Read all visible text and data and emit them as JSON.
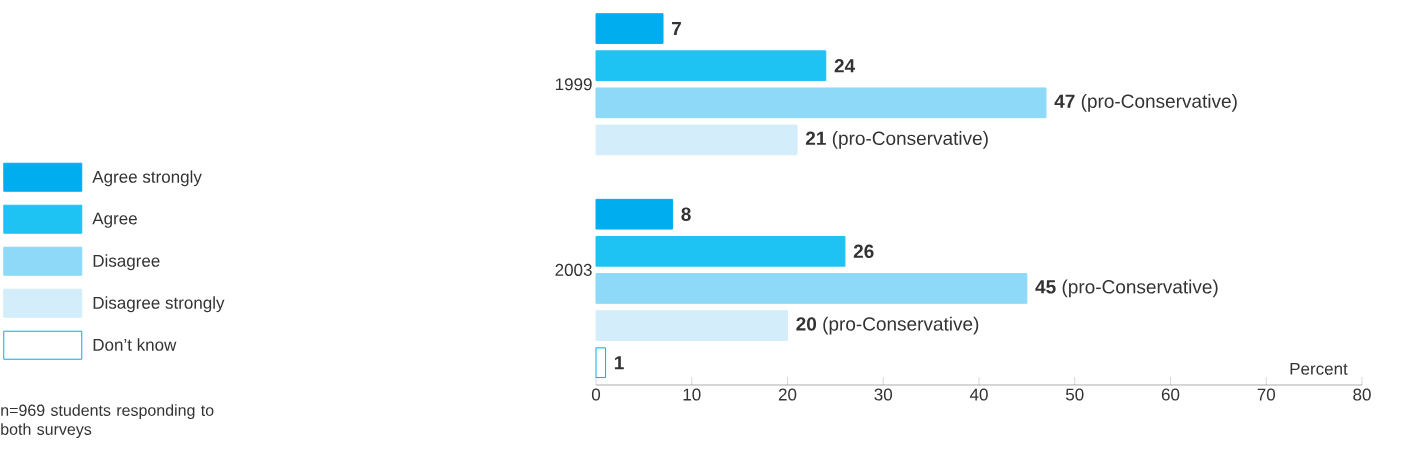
{
  "chart_data": {
    "type": "bar",
    "orientation": "horizontal",
    "xlabel": "Percent",
    "categories": [
      "1999",
      "2003"
    ],
    "series": [
      {
        "name": "Agree strongly",
        "color": "#00aeef",
        "values": [
          7,
          8
        ],
        "value_labels": [
          "**7**",
          "**8**"
        ]
      },
      {
        "name": "Agree",
        "color": "#1ec3f3",
        "values": [
          24,
          26
        ],
        "value_labels": [
          "**24**",
          "**26**"
        ]
      },
      {
        "name": "Disagree",
        "color": "#8dd9f7",
        "values": [
          47,
          45
        ],
        "value_labels": [
          "**47** (pro-Conservative)",
          "**45** (pro-Conservative)"
        ]
      },
      {
        "name": "Disagree strongly",
        "color": "#d3eefa",
        "values": [
          21,
          20
        ],
        "value_labels": [
          "**21** (pro-Conservative)",
          "**20** (pro-Conservative)"
        ]
      },
      {
        "name": "Don’t know",
        "color": "#ffffff",
        "values": [
          null,
          1
        ],
        "value_labels": [
          null,
          "**1**"
        ]
      }
    ],
    "xlim": [
      0,
      80
    ],
    "xticks": [
      0,
      10,
      20,
      30,
      40,
      50,
      60,
      70,
      80
    ],
    "legend": "left",
    "annotations": [
      "n=969 students responding to both surveys"
    ]
  }
}
